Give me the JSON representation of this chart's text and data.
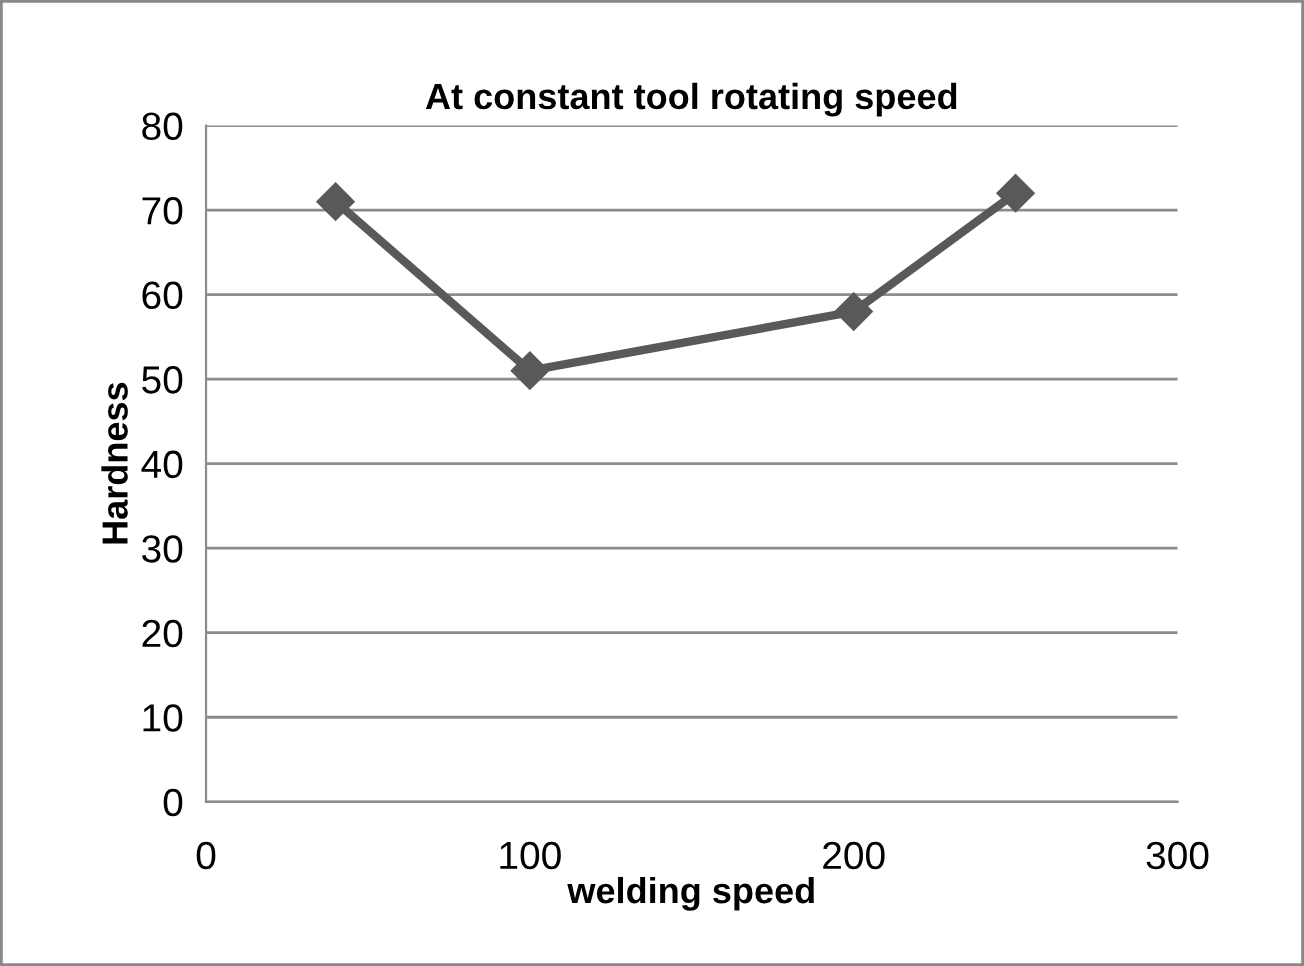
{
  "chart_data": {
    "type": "line",
    "title": "At constant tool rotating speed",
    "xlabel": "welding speed",
    "ylabel": "Hardness",
    "x": [
      40,
      100,
      200,
      250
    ],
    "series": [
      {
        "color": "#595959",
        "values": [
          71,
          51,
          58,
          72
        ]
      }
    ],
    "xlim": [
      0,
      300
    ],
    "xticks": [
      0,
      100,
      200,
      300
    ],
    "ylim": [
      0,
      80
    ],
    "yticks": [
      0,
      10,
      20,
      30,
      40,
      50,
      60,
      70,
      80
    ],
    "grid": "y",
    "marker": "diamond",
    "line_style": "solid",
    "legend": false
  }
}
